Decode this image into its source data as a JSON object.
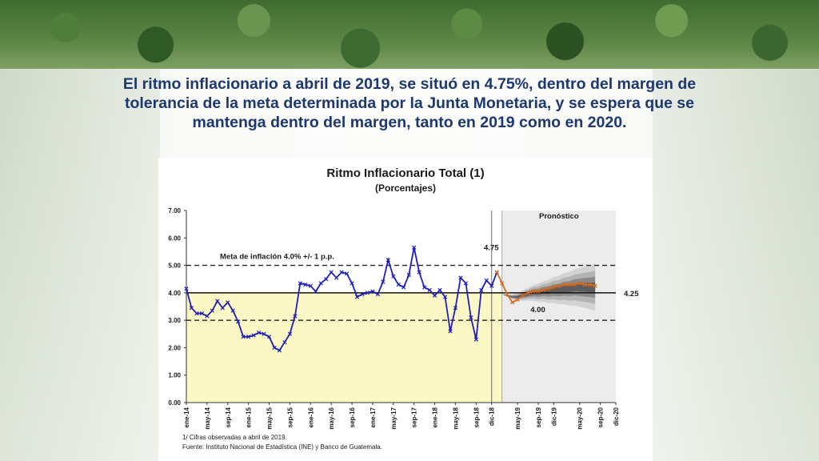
{
  "headline": "El ritmo inflacionario a abril de 2019, se situó en 4.75%, dentro del margen de tolerancia de la meta determinada por la Junta Monetaria, y se espera que se mantenga dentro del margen, tanto en 2019 como en 2020.",
  "chart_data": {
    "type": "line",
    "title": "Ritmo Inflacionario Total (1)",
    "subtitle": "(Porcentajes)",
    "xlabel": "",
    "ylabel": "",
    "ylim": [
      0,
      7
    ],
    "y_ticks": [
      "0.00",
      "1.00",
      "2.00",
      "3.00",
      "4.00",
      "5.00",
      "6.00",
      "7.00"
    ],
    "x_ticks": [
      {
        "label": "ene-14",
        "x": 0
      },
      {
        "label": "may-14",
        "x": 4
      },
      {
        "label": "sep-14",
        "x": 8
      },
      {
        "label": "ene-15",
        "x": 12
      },
      {
        "label": "may-15",
        "x": 16
      },
      {
        "label": "sep-15",
        "x": 20
      },
      {
        "label": "ene-16",
        "x": 24
      },
      {
        "label": "may-16",
        "x": 28
      },
      {
        "label": "sep-16",
        "x": 32
      },
      {
        "label": "ene-17",
        "x": 36
      },
      {
        "label": "may-17",
        "x": 40
      },
      {
        "label": "sep-17",
        "x": 44
      },
      {
        "label": "ene-18",
        "x": 48
      },
      {
        "label": "may-18",
        "x": 52
      },
      {
        "label": "sep-18",
        "x": 56
      },
      {
        "label": "dic-18",
        "x": 59
      },
      {
        "label": "may-19",
        "x": 64
      },
      {
        "label": "sep-19",
        "x": 68
      },
      {
        "label": "dic-19",
        "x": 71
      },
      {
        "label": "may-20",
        "x": 76
      },
      {
        "label": "sep-20",
        "x": 80
      },
      {
        "label": "dic-20",
        "x": 83
      }
    ],
    "series": [
      {
        "name": "",
        "color": "#1f1fb4",
        "x_start": 0,
        "values": [
          4.15,
          3.45,
          3.25,
          3.25,
          3.15,
          3.35,
          3.7,
          3.45,
          3.65,
          3.35,
          2.95,
          2.4,
          2.4,
          2.45,
          2.55,
          2.5,
          2.4,
          2.0,
          1.9,
          2.2,
          2.5,
          3.15,
          4.35,
          4.3,
          4.25,
          4.05,
          4.35,
          4.5,
          4.75,
          4.55,
          4.75,
          4.7,
          4.35,
          3.85,
          3.95,
          4.0,
          4.05,
          3.95,
          4.4,
          5.2,
          4.6,
          4.3,
          4.2,
          4.65,
          5.65,
          4.75,
          4.2,
          4.1,
          3.9,
          4.1,
          3.85,
          2.6,
          3.45,
          4.55,
          4.35,
          3.1,
          2.3,
          4.1,
          4.45,
          4.25,
          4.75
        ]
      },
      {
        "name": "",
        "color": "#d2691e",
        "x_start": 60,
        "values": [
          4.75,
          4.35,
          3.95,
          3.65,
          3.75,
          3.9,
          4.0,
          4.05,
          4.05,
          4.1,
          4.15,
          4.2,
          4.25,
          4.3,
          4.3,
          4.3,
          4.35,
          4.3,
          4.3,
          4.25
        ]
      }
    ],
    "target_line": 4.0,
    "tolerance_band": [
      3.0,
      5.0
    ],
    "forecast_fan": {
      "center": [
        3.95,
        3.9,
        3.85,
        3.85,
        3.9,
        3.95,
        4.0,
        4.0,
        4.05,
        4.05,
        4.1,
        4.1,
        4.15,
        4.15,
        4.2,
        4.2,
        4.2,
        4.2,
        4.2
      ],
      "x_start": 61,
      "bands": [
        {
          "half_width_end": 0.85,
          "color": "#d3d3d3"
        },
        {
          "half_width_end": 0.6,
          "color": "#b3b3b3"
        },
        {
          "half_width_end": 0.38,
          "color": "#8a8a8a"
        },
        {
          "half_width_end": 0.18,
          "color": "#5c5c5c"
        }
      ]
    },
    "forecast_start_x": 61,
    "annotations": {
      "forecast": "Pronóstico",
      "target": "Meta de inflación 4.0% +/- 1 p.p.",
      "value_last": "4.75",
      "value_target": "4.00",
      "value_end": "4.25"
    },
    "footnotes": [
      "1/ Cifras observadas a abril de 2019.",
      "Fuente: Instituto Nacional de Estadística (INE) y Banco de Guatemala."
    ],
    "colors": {
      "history_fill": "#fbf8c6",
      "forecast_bg": "#ececec",
      "observed": "#1f1fb4",
      "projected": "#d2691e"
    },
    "grid": false,
    "legend": "none"
  }
}
